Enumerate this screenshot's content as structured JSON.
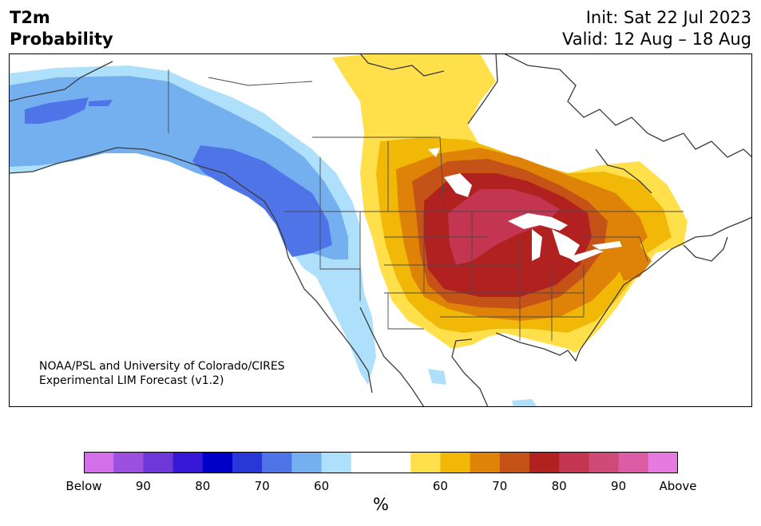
{
  "header": {
    "title_line1": "T2m",
    "title_line2": "Probability",
    "init_text": "Init: Sat 22 Jul 2023",
    "valid_text": "Valid: 12 Aug – 18 Aug"
  },
  "credit": {
    "line1": "NOAA/PSL and University of Colorado/CIRES",
    "line2": "Experimental LIM Forecast (v1.2)"
  },
  "colorbar": {
    "colors": [
      "#d36fe8",
      "#9d4fe0",
      "#6e38d8",
      "#3818d8",
      "#0000c8",
      "#2838d8",
      "#4f74e8",
      "#74b0f0",
      "#aee0fb",
      "#ffffff",
      "#ffffff",
      "#ffe04a",
      "#f2b807",
      "#de8308",
      "#c55318",
      "#b02120",
      "#c33550",
      "#d04a78",
      "#dc5ca6",
      "#e77ae0"
    ],
    "tick_labels": [
      "Below",
      "90",
      "80",
      "70",
      "60",
      "60",
      "70",
      "80",
      "90",
      "Above"
    ],
    "unit_label": "%"
  }
}
